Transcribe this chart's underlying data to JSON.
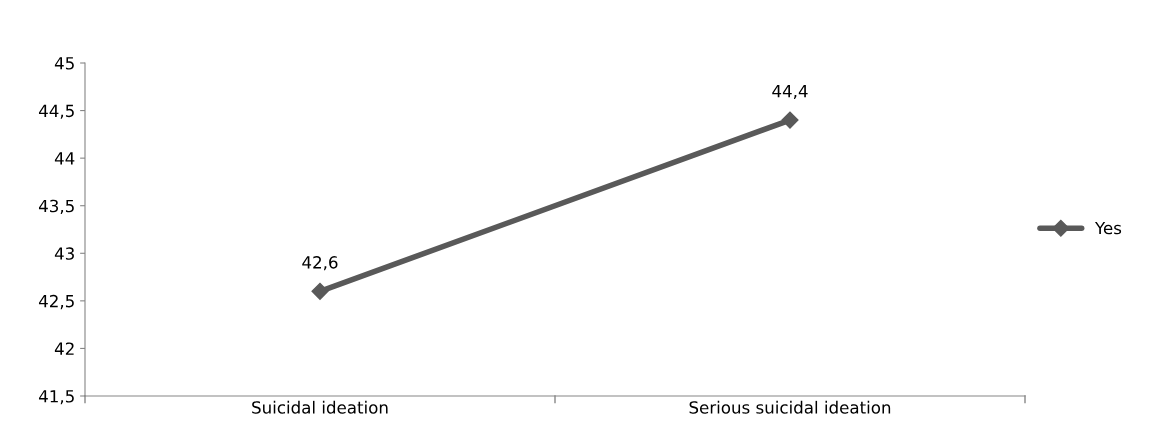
{
  "chart_data": {
    "type": "line",
    "categories": [
      "Suicidal ideation",
      "Serious suicidal ideation"
    ],
    "series": [
      {
        "name": "Yes",
        "color": "#595959",
        "values": [
          42.6,
          44.4
        ],
        "value_labels": [
          "42,6",
          "44,4"
        ]
      }
    ],
    "ylim": [
      41.5,
      45
    ],
    "yticks": [
      {
        "value": 41.5,
        "label": "41,5"
      },
      {
        "value": 42,
        "label": "42"
      },
      {
        "value": 42.5,
        "label": "42,5"
      },
      {
        "value": 43,
        "label": "43"
      },
      {
        "value": 43.5,
        "label": "43,5"
      },
      {
        "value": 44,
        "label": "44"
      },
      {
        "value": 44.5,
        "label": "44,5"
      },
      {
        "value": 45,
        "label": "45"
      }
    ],
    "grid": false,
    "legend": "right",
    "marker": "diamond",
    "line_style": "solid"
  }
}
